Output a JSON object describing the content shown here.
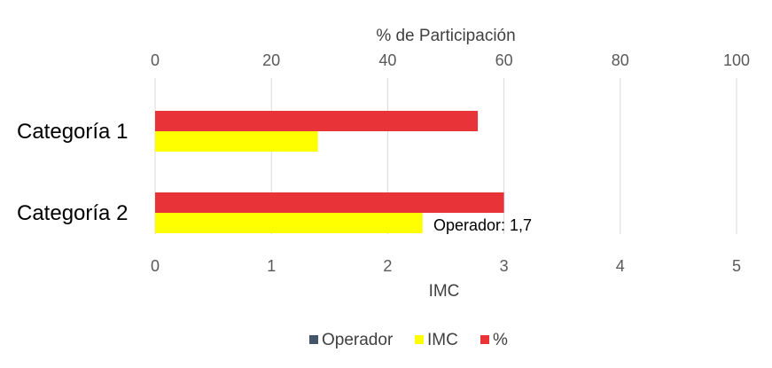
{
  "chart_data": {
    "type": "bar",
    "orientation": "horizontal",
    "categories": [
      "Categoría 1",
      "Categoría 2"
    ],
    "top_axis": {
      "title": "% de Participación",
      "range": [
        0,
        100
      ],
      "ticks": [
        "0",
        "20",
        "40",
        "60",
        "80",
        "100"
      ]
    },
    "bottom_axis": {
      "title": "IMC",
      "range": [
        0,
        5
      ],
      "ticks": [
        "0",
        "1",
        "2",
        "3",
        "4",
        "5"
      ]
    },
    "series": [
      {
        "name": "Operador",
        "axis": "bottom",
        "values": [
          0,
          1.7
        ],
        "color": "#44546A"
      },
      {
        "name": "IMC",
        "axis": "bottom",
        "values": [
          1.4,
          2.3
        ],
        "color": "#FFFF00"
      },
      {
        "name": "%",
        "axis": "top",
        "values": [
          55.5,
          60
        ],
        "color": "#E83338"
      }
    ],
    "annotations": [
      {
        "text": "Operador: 1,7",
        "category": "Categoría 2"
      }
    ],
    "legend": {
      "position": "bottom",
      "items": [
        "Operador",
        "IMC",
        "%"
      ]
    },
    "grid": true
  }
}
